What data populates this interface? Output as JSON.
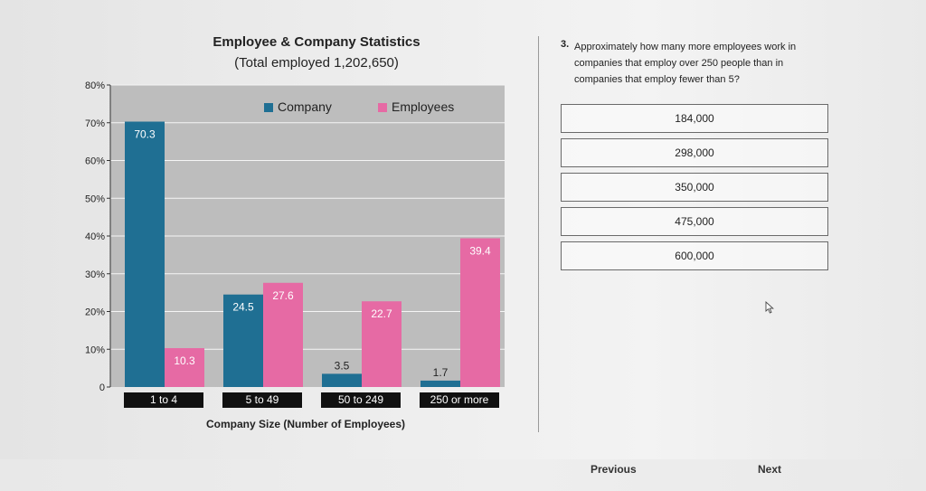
{
  "chart_data": {
    "type": "bar",
    "title": "Employee & Company Statistics",
    "subtitle": "(Total employed 1,202,650)",
    "xlabel": "Company Size (Number of Employees)",
    "ylabel": "",
    "categories": [
      "1 to 4",
      "5 to 49",
      "50 to 249",
      "250 or more"
    ],
    "y_ticks": [
      "0",
      "10%",
      "20%",
      "30%",
      "40%",
      "50%",
      "60%",
      "70%",
      "80%"
    ],
    "ylim": [
      0,
      80
    ],
    "grid": true,
    "legend_position": "top",
    "series": [
      {
        "name": "Company",
        "values": [
          70.3,
          24.5,
          3.5,
          1.7
        ],
        "value_labels": [
          "70.3",
          "24.5",
          "3.5",
          "1.7"
        ],
        "color": "#1f6f93"
      },
      {
        "name": "Employees",
        "values": [
          10.3,
          27.6,
          22.7,
          39.4
        ],
        "value_labels": [
          "10.3",
          "27.6",
          "22.7",
          "39.4"
        ],
        "color": "#e66aa4"
      }
    ]
  },
  "question": {
    "number": "3.",
    "text": "Approximately how many more employees work in companies that employ over 250 people than in companies that employ fewer than 5?",
    "options": [
      "184,000",
      "298,000",
      "350,000",
      "475,000",
      "600,000"
    ]
  },
  "navigation": {
    "previous_label": "Previous",
    "next_label": "Next"
  },
  "icons": {
    "cursor": "mouse-pointer-icon"
  }
}
